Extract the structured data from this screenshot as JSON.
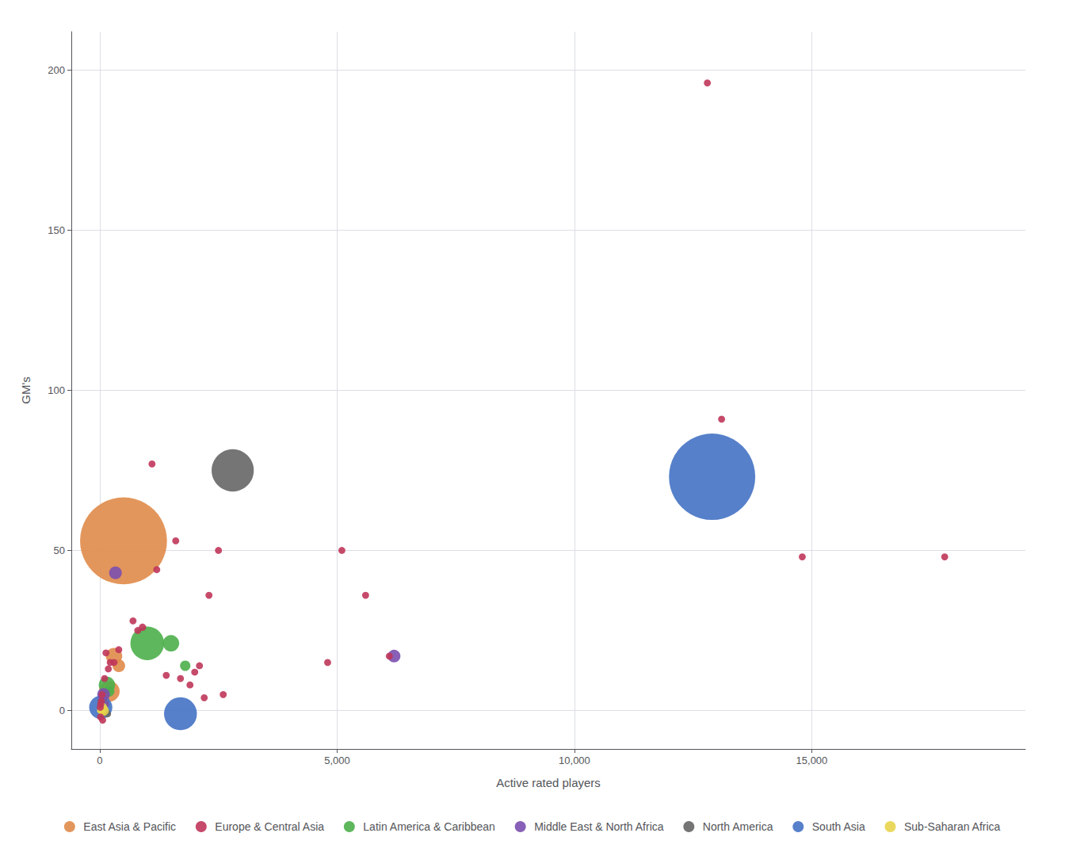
{
  "chart_data": {
    "type": "scatter",
    "xlabel": "Active rated players",
    "ylabel": "GM's",
    "xlim": [
      -600,
      19500
    ],
    "ylim": [
      -12,
      212
    ],
    "xticks": [
      0,
      5000,
      10000,
      15000
    ],
    "yticks": [
      0,
      50,
      100,
      150,
      200
    ],
    "grid": true,
    "legend": "bottom",
    "series": [
      {
        "name": "East Asia & Pacific",
        "color": "#E08B4A",
        "x": [
          500,
          300,
          400,
          200,
          90,
          50,
          30
        ],
        "values": [
          53,
          17,
          14,
          6,
          3,
          1,
          0
        ],
        "sizes": [
          1400,
          50,
          30,
          80,
          20,
          10,
          10
        ]
      },
      {
        "name": "Europe & Central Asia",
        "color": "#C0365A",
        "x": [
          12800,
          13100,
          14800,
          17800,
          1100,
          1600,
          2500,
          5100,
          1200,
          2300,
          5600,
          4800,
          6100,
          700,
          800,
          900,
          400,
          300,
          220,
          130,
          180,
          100,
          50,
          30,
          20,
          10,
          15,
          60,
          1400,
          1700,
          1900,
          2000,
          2100,
          2200,
          2600
        ],
        "values": [
          196,
          91,
          48,
          48,
          77,
          53,
          50,
          50,
          44,
          36,
          36,
          15,
          17,
          28,
          25,
          26,
          19,
          15,
          15,
          18,
          13,
          10,
          5,
          3,
          2,
          1,
          -2,
          -3,
          11,
          10,
          8,
          12,
          14,
          4,
          5
        ],
        "sizes": [
          9,
          9,
          9,
          9,
          9,
          9,
          9,
          9,
          9,
          9,
          9,
          9,
          9,
          9,
          9,
          10,
          9,
          9,
          9,
          9,
          9,
          9,
          9,
          9,
          9,
          9,
          9,
          9,
          9,
          9,
          9,
          9,
          9,
          9,
          9
        ]
      },
      {
        "name": "Latin America & Caribbean",
        "color": "#4DAF4A",
        "x": [
          1000,
          1500,
          1800,
          150,
          200,
          70,
          40
        ],
        "values": [
          21,
          21,
          14,
          8,
          6,
          2,
          0
        ],
        "sizes": [
          210,
          50,
          20,
          50,
          20,
          20,
          10
        ]
      },
      {
        "name": "Middle East & North Africa",
        "color": "#7B4FAF",
        "x": [
          6200,
          330,
          80,
          120
        ],
        "values": [
          17,
          43,
          5,
          2
        ],
        "sizes": [
          30,
          30,
          30,
          10
        ]
      },
      {
        "name": "North America",
        "color": "#666666",
        "x": [
          2800,
          160
        ],
        "values": [
          75,
          -1
        ],
        "sizes": [
          330,
          10
        ]
      },
      {
        "name": "South Asia",
        "color": "#4472C4",
        "x": [
          12900,
          20,
          1700
        ],
        "values": [
          73,
          1,
          -1
        ],
        "sizes": [
          1380,
          100,
          200
        ]
      },
      {
        "name": "Sub-Saharan Africa",
        "color": "#E8D44D",
        "x": [
          80,
          60,
          50,
          30,
          20,
          10
        ],
        "values": [
          0,
          1,
          0,
          0,
          0,
          0
        ],
        "sizes": [
          20,
          15,
          10,
          10,
          8,
          8
        ]
      }
    ]
  }
}
